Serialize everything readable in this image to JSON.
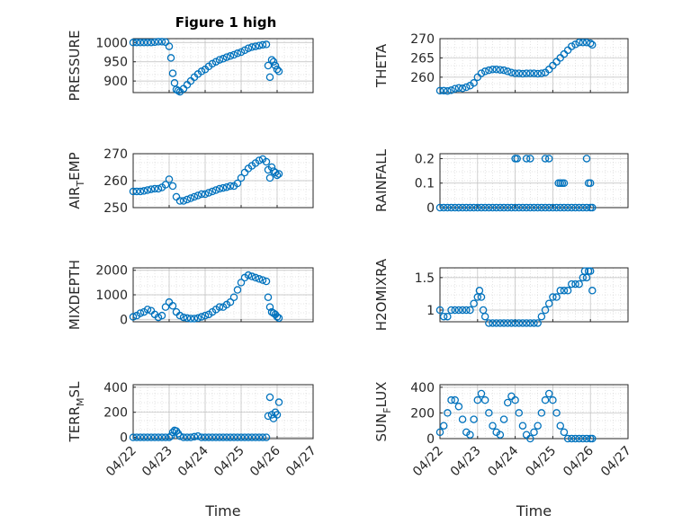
{
  "figure": {
    "title": "Figure 1 high",
    "marker_color": "#0072BD",
    "grid": true,
    "x_axis": {
      "label": "Time",
      "ticks": [
        "04/22",
        "04/23",
        "04/24",
        "04/25",
        "04/26",
        "04/27"
      ]
    }
  },
  "chart_data": [
    {
      "type": "scatter",
      "ylabel": "PRESSURE",
      "ylim": [
        870,
        1010
      ],
      "yticks": [
        "1000",
        "950",
        "900"
      ],
      "ytick_values": [
        1000,
        950,
        900
      ],
      "xlim": [
        0,
        5
      ],
      "x": [
        0,
        0.1,
        0.2,
        0.3,
        0.4,
        0.5,
        0.6,
        0.7,
        0.8,
        0.9,
        1.0,
        1.05,
        1.1,
        1.15,
        1.2,
        1.25,
        1.3,
        1.4,
        1.5,
        1.6,
        1.7,
        1.8,
        1.9,
        2.0,
        2.1,
        2.2,
        2.3,
        2.4,
        2.5,
        2.6,
        2.7,
        2.8,
        2.9,
        3.0,
        3.1,
        3.2,
        3.3,
        3.4,
        3.5,
        3.6,
        3.7,
        3.75,
        3.8,
        3.85,
        3.9,
        3.95,
        4.0,
        4.05
      ],
      "y": [
        1000,
        1000,
        1000,
        1000,
        1000,
        1000,
        1001,
        1002,
        1002,
        1001,
        990,
        960,
        920,
        895,
        878,
        875,
        872,
        880,
        890,
        900,
        910,
        918,
        925,
        930,
        938,
        945,
        950,
        955,
        958,
        962,
        965,
        968,
        972,
        975,
        980,
        985,
        988,
        990,
        992,
        994,
        995,
        940,
        910,
        955,
        950,
        940,
        930,
        925
      ]
    },
    {
      "type": "scatter",
      "ylabel": "THETA",
      "ylim": [
        256,
        270
      ],
      "yticks": [
        "270",
        "265",
        "260"
      ],
      "ytick_values": [
        270,
        265,
        260
      ],
      "xlim": [
        0,
        5
      ],
      "x": [
        0,
        0.1,
        0.2,
        0.3,
        0.4,
        0.5,
        0.6,
        0.7,
        0.8,
        0.9,
        1.0,
        1.1,
        1.2,
        1.3,
        1.4,
        1.5,
        1.6,
        1.7,
        1.8,
        1.9,
        2.0,
        2.1,
        2.2,
        2.3,
        2.4,
        2.5,
        2.6,
        2.7,
        2.8,
        2.9,
        3.0,
        3.1,
        3.2,
        3.3,
        3.4,
        3.5,
        3.6,
        3.7,
        3.8,
        3.9,
        4.0,
        4.05
      ],
      "y": [
        256.5,
        256.5,
        256.4,
        256.6,
        257,
        257.2,
        257.1,
        257.4,
        257.8,
        258.5,
        260,
        261,
        261.5,
        261.8,
        262,
        262,
        261.9,
        261.8,
        261.5,
        261.2,
        261,
        261,
        260.9,
        261,
        261,
        261,
        260.9,
        261,
        261.2,
        262,
        263,
        264,
        265,
        266,
        267,
        268,
        268.5,
        269,
        269,
        269,
        268.8,
        268.4
      ]
    },
    {
      "type": "scatter",
      "ylabel": "AIR_TEMP",
      "ylim": [
        250,
        270
      ],
      "yticks": [
        "270",
        "260",
        "250"
      ],
      "ytick_values": [
        270,
        260,
        250
      ],
      "xlim": [
        0,
        5
      ],
      "x": [
        0,
        0.1,
        0.2,
        0.3,
        0.4,
        0.5,
        0.6,
        0.7,
        0.8,
        0.9,
        1.0,
        1.1,
        1.2,
        1.3,
        1.4,
        1.5,
        1.6,
        1.7,
        1.8,
        1.9,
        2.0,
        2.1,
        2.2,
        2.3,
        2.4,
        2.5,
        2.6,
        2.7,
        2.8,
        2.9,
        3.0,
        3.1,
        3.2,
        3.3,
        3.4,
        3.5,
        3.6,
        3.7,
        3.75,
        3.8,
        3.85,
        3.9,
        3.95,
        4.0,
        4.05
      ],
      "y": [
        256,
        256,
        256,
        256.2,
        256.5,
        256.8,
        257,
        257,
        257.5,
        258.5,
        260.5,
        258,
        254,
        252.5,
        252.5,
        253,
        253.5,
        254,
        254.5,
        255,
        255,
        255.5,
        256,
        256.5,
        257,
        257.3,
        257.6,
        258,
        258,
        259,
        261,
        263,
        264.5,
        265.5,
        266.5,
        267.5,
        268,
        267,
        264,
        261,
        265,
        263.5,
        263,
        262,
        262.5
      ]
    },
    {
      "type": "scatter",
      "ylabel": "RAINFALL",
      "ylim": [
        0,
        0.22
      ],
      "yticks": [
        "0.2",
        "0.1",
        "0"
      ],
      "ytick_values": [
        0.2,
        0.1,
        0
      ],
      "xlim": [
        0,
        5
      ],
      "x": [
        0,
        0.1,
        0.2,
        0.3,
        0.4,
        0.5,
        0.6,
        0.7,
        0.8,
        0.9,
        1.0,
        1.1,
        1.2,
        1.3,
        1.4,
        1.5,
        1.6,
        1.7,
        1.8,
        1.9,
        2.0,
        2.1,
        2.2,
        2.3,
        2.4,
        2.5,
        2.6,
        2.7,
        2.8,
        2.9,
        3.0,
        3.1,
        3.2,
        3.3,
        3.4,
        3.5,
        3.6,
        3.7,
        3.8,
        3.9,
        4.0,
        4.05,
        2.0,
        2.05,
        2.3,
        2.4,
        2.8,
        2.9,
        3.15,
        3.2,
        3.25,
        3.3,
        3.9,
        3.95,
        4.0
      ],
      "y": [
        0,
        0,
        0,
        0,
        0,
        0,
        0,
        0,
        0,
        0,
        0,
        0,
        0,
        0,
        0,
        0,
        0,
        0,
        0,
        0,
        0,
        0,
        0,
        0,
        0,
        0,
        0,
        0,
        0,
        0,
        0,
        0,
        0,
        0,
        0,
        0,
        0,
        0,
        0,
        0,
        0,
        0,
        0.2,
        0.2,
        0.2,
        0.2,
        0.2,
        0.2,
        0.1,
        0.1,
        0.1,
        0.1,
        0.2,
        0.1,
        0.1
      ]
    },
    {
      "type": "scatter",
      "ylabel": "MIXDEPTH",
      "ylim": [
        -100,
        2100
      ],
      "yticks": [
        "2000",
        "1000",
        "0"
      ],
      "ytick_values": [
        2000,
        1000,
        0
      ],
      "xlim": [
        0,
        5
      ],
      "x": [
        0,
        0.1,
        0.2,
        0.3,
        0.4,
        0.5,
        0.6,
        0.7,
        0.8,
        0.9,
        1.0,
        1.1,
        1.2,
        1.3,
        1.4,
        1.5,
        1.6,
        1.7,
        1.8,
        1.9,
        2.0,
        2.1,
        2.2,
        2.3,
        2.4,
        2.5,
        2.6,
        2.7,
        2.8,
        2.9,
        3.0,
        3.1,
        3.2,
        3.3,
        3.4,
        3.5,
        3.6,
        3.7,
        3.75,
        3.8,
        3.85,
        3.9,
        3.95,
        4.0,
        4.05
      ],
      "y": [
        100,
        150,
        250,
        300,
        400,
        350,
        200,
        80,
        150,
        500,
        700,
        550,
        300,
        150,
        80,
        50,
        30,
        30,
        50,
        100,
        150,
        200,
        300,
        400,
        500,
        500,
        600,
        700,
        900,
        1200,
        1500,
        1700,
        1800,
        1750,
        1700,
        1650,
        1600,
        1550,
        900,
        500,
        300,
        250,
        200,
        100,
        50
      ]
    },
    {
      "type": "scatter",
      "ylabel": "H2OMIXRA",
      "ylim": [
        0.82,
        1.65
      ],
      "yticks": [
        "1.5",
        "1"
      ],
      "ytick_values": [
        1.5,
        1
      ],
      "xlim": [
        0,
        5
      ],
      "x": [
        0,
        0.1,
        0.2,
        0.3,
        0.4,
        0.5,
        0.6,
        0.7,
        0.8,
        0.9,
        1.0,
        1.05,
        1.1,
        1.15,
        1.2,
        1.3,
        1.4,
        1.5,
        1.6,
        1.7,
        1.8,
        1.9,
        2.0,
        2.1,
        2.2,
        2.3,
        2.4,
        2.5,
        2.6,
        2.7,
        2.8,
        2.9,
        3.0,
        3.1,
        3.2,
        3.3,
        3.4,
        3.5,
        3.6,
        3.7,
        3.8,
        3.85,
        3.9,
        3.95,
        4.0,
        4.05
      ],
      "y": [
        1,
        0.9,
        0.9,
        1,
        1,
        1,
        1,
        1,
        1,
        1.1,
        1.2,
        1.3,
        1.2,
        1.0,
        0.9,
        0.8,
        0.8,
        0.8,
        0.8,
        0.8,
        0.8,
        0.8,
        0.8,
        0.8,
        0.8,
        0.8,
        0.8,
        0.8,
        0.8,
        0.9,
        1.0,
        1.1,
        1.2,
        1.2,
        1.3,
        1.3,
        1.3,
        1.4,
        1.4,
        1.4,
        1.5,
        1.6,
        1.5,
        1.6,
        1.6,
        1.3
      ]
    },
    {
      "type": "scatter",
      "ylabel": "TERR_MSL",
      "ylim": [
        -10,
        420
      ],
      "yticks": [
        "400",
        "200",
        "0"
      ],
      "ytick_values": [
        400,
        200,
        0
      ],
      "xlim": [
        0,
        5
      ],
      "x": [
        0,
        0.1,
        0.2,
        0.3,
        0.4,
        0.5,
        0.6,
        0.7,
        0.8,
        0.9,
        1.0,
        1.05,
        1.1,
        1.15,
        1.2,
        1.25,
        1.3,
        1.4,
        1.5,
        1.6,
        1.7,
        1.8,
        1.9,
        2.0,
        2.1,
        2.2,
        2.3,
        2.4,
        2.5,
        2.6,
        2.7,
        2.8,
        2.9,
        3.0,
        3.1,
        3.2,
        3.3,
        3.4,
        3.5,
        3.6,
        3.7,
        3.75,
        3.8,
        3.85,
        3.9,
        3.95,
        4.0,
        4.05
      ],
      "y": [
        0,
        0,
        0,
        0,
        0,
        0,
        0,
        0,
        0,
        0,
        0,
        10,
        40,
        55,
        50,
        30,
        10,
        0,
        0,
        0,
        5,
        10,
        0,
        0,
        0,
        0,
        0,
        0,
        0,
        0,
        0,
        0,
        0,
        0,
        0,
        0,
        0,
        0,
        0,
        0,
        0,
        170,
        320,
        180,
        150,
        200,
        180,
        280
      ]
    },
    {
      "type": "scatter",
      "ylabel": "SUN_FLUX",
      "ylim": [
        0,
        420
      ],
      "yticks": [
        "400",
        "200",
        "0"
      ],
      "ytick_values": [
        400,
        200,
        0
      ],
      "xlim": [
        0,
        5
      ],
      "x": [
        0,
        0.1,
        0.2,
        0.3,
        0.4,
        0.5,
        0.6,
        0.7,
        0.8,
        0.9,
        1.0,
        1.1,
        1.2,
        1.3,
        1.4,
        1.5,
        1.6,
        1.7,
        1.8,
        1.9,
        2.0,
        2.1,
        2.2,
        2.3,
        2.4,
        2.5,
        2.6,
        2.7,
        2.8,
        2.9,
        3.0,
        3.1,
        3.2,
        3.3,
        3.4,
        3.5,
        3.6,
        3.7,
        3.8,
        3.9,
        4.0,
        4.05
      ],
      "y": [
        50,
        100,
        200,
        300,
        300,
        250,
        150,
        50,
        30,
        150,
        300,
        350,
        300,
        200,
        100,
        50,
        30,
        150,
        280,
        330,
        300,
        200,
        100,
        30,
        0,
        50,
        100,
        200,
        300,
        350,
        300,
        200,
        100,
        50,
        0,
        0,
        0,
        0,
        0,
        0,
        0,
        0
      ]
    }
  ]
}
